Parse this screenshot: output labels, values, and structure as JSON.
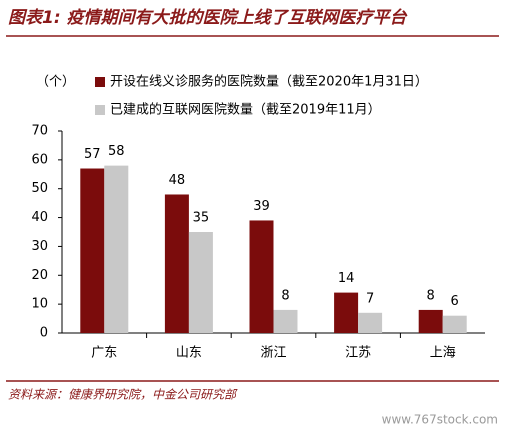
{
  "chart_data": {
    "type": "bar",
    "title": "图表1: 疫情期间有大批的医院上线了互联网医疗平台",
    "y_label": "（个）",
    "categories": [
      "广东",
      "山东",
      "浙江",
      "江苏",
      "上海"
    ],
    "series": [
      {
        "name": "开设在线义诊服务的医院数量（截至2020年1月31日）",
        "color": "#7b0c0c",
        "values": [
          57,
          48,
          39,
          14,
          8
        ]
      },
      {
        "name": "已建成的互联网医院数量（截至2019年11月）",
        "color": "#c8c8c8",
        "values": [
          58,
          35,
          8,
          7,
          6
        ]
      }
    ],
    "ylim": [
      0,
      70
    ],
    "yticks": [
      0,
      10,
      20,
      30,
      40,
      50,
      60,
      70
    ],
    "grid": false,
    "source": "资料来源：健康界研究院，中金公司研究部",
    "watermark": "www.767stock.com"
  }
}
